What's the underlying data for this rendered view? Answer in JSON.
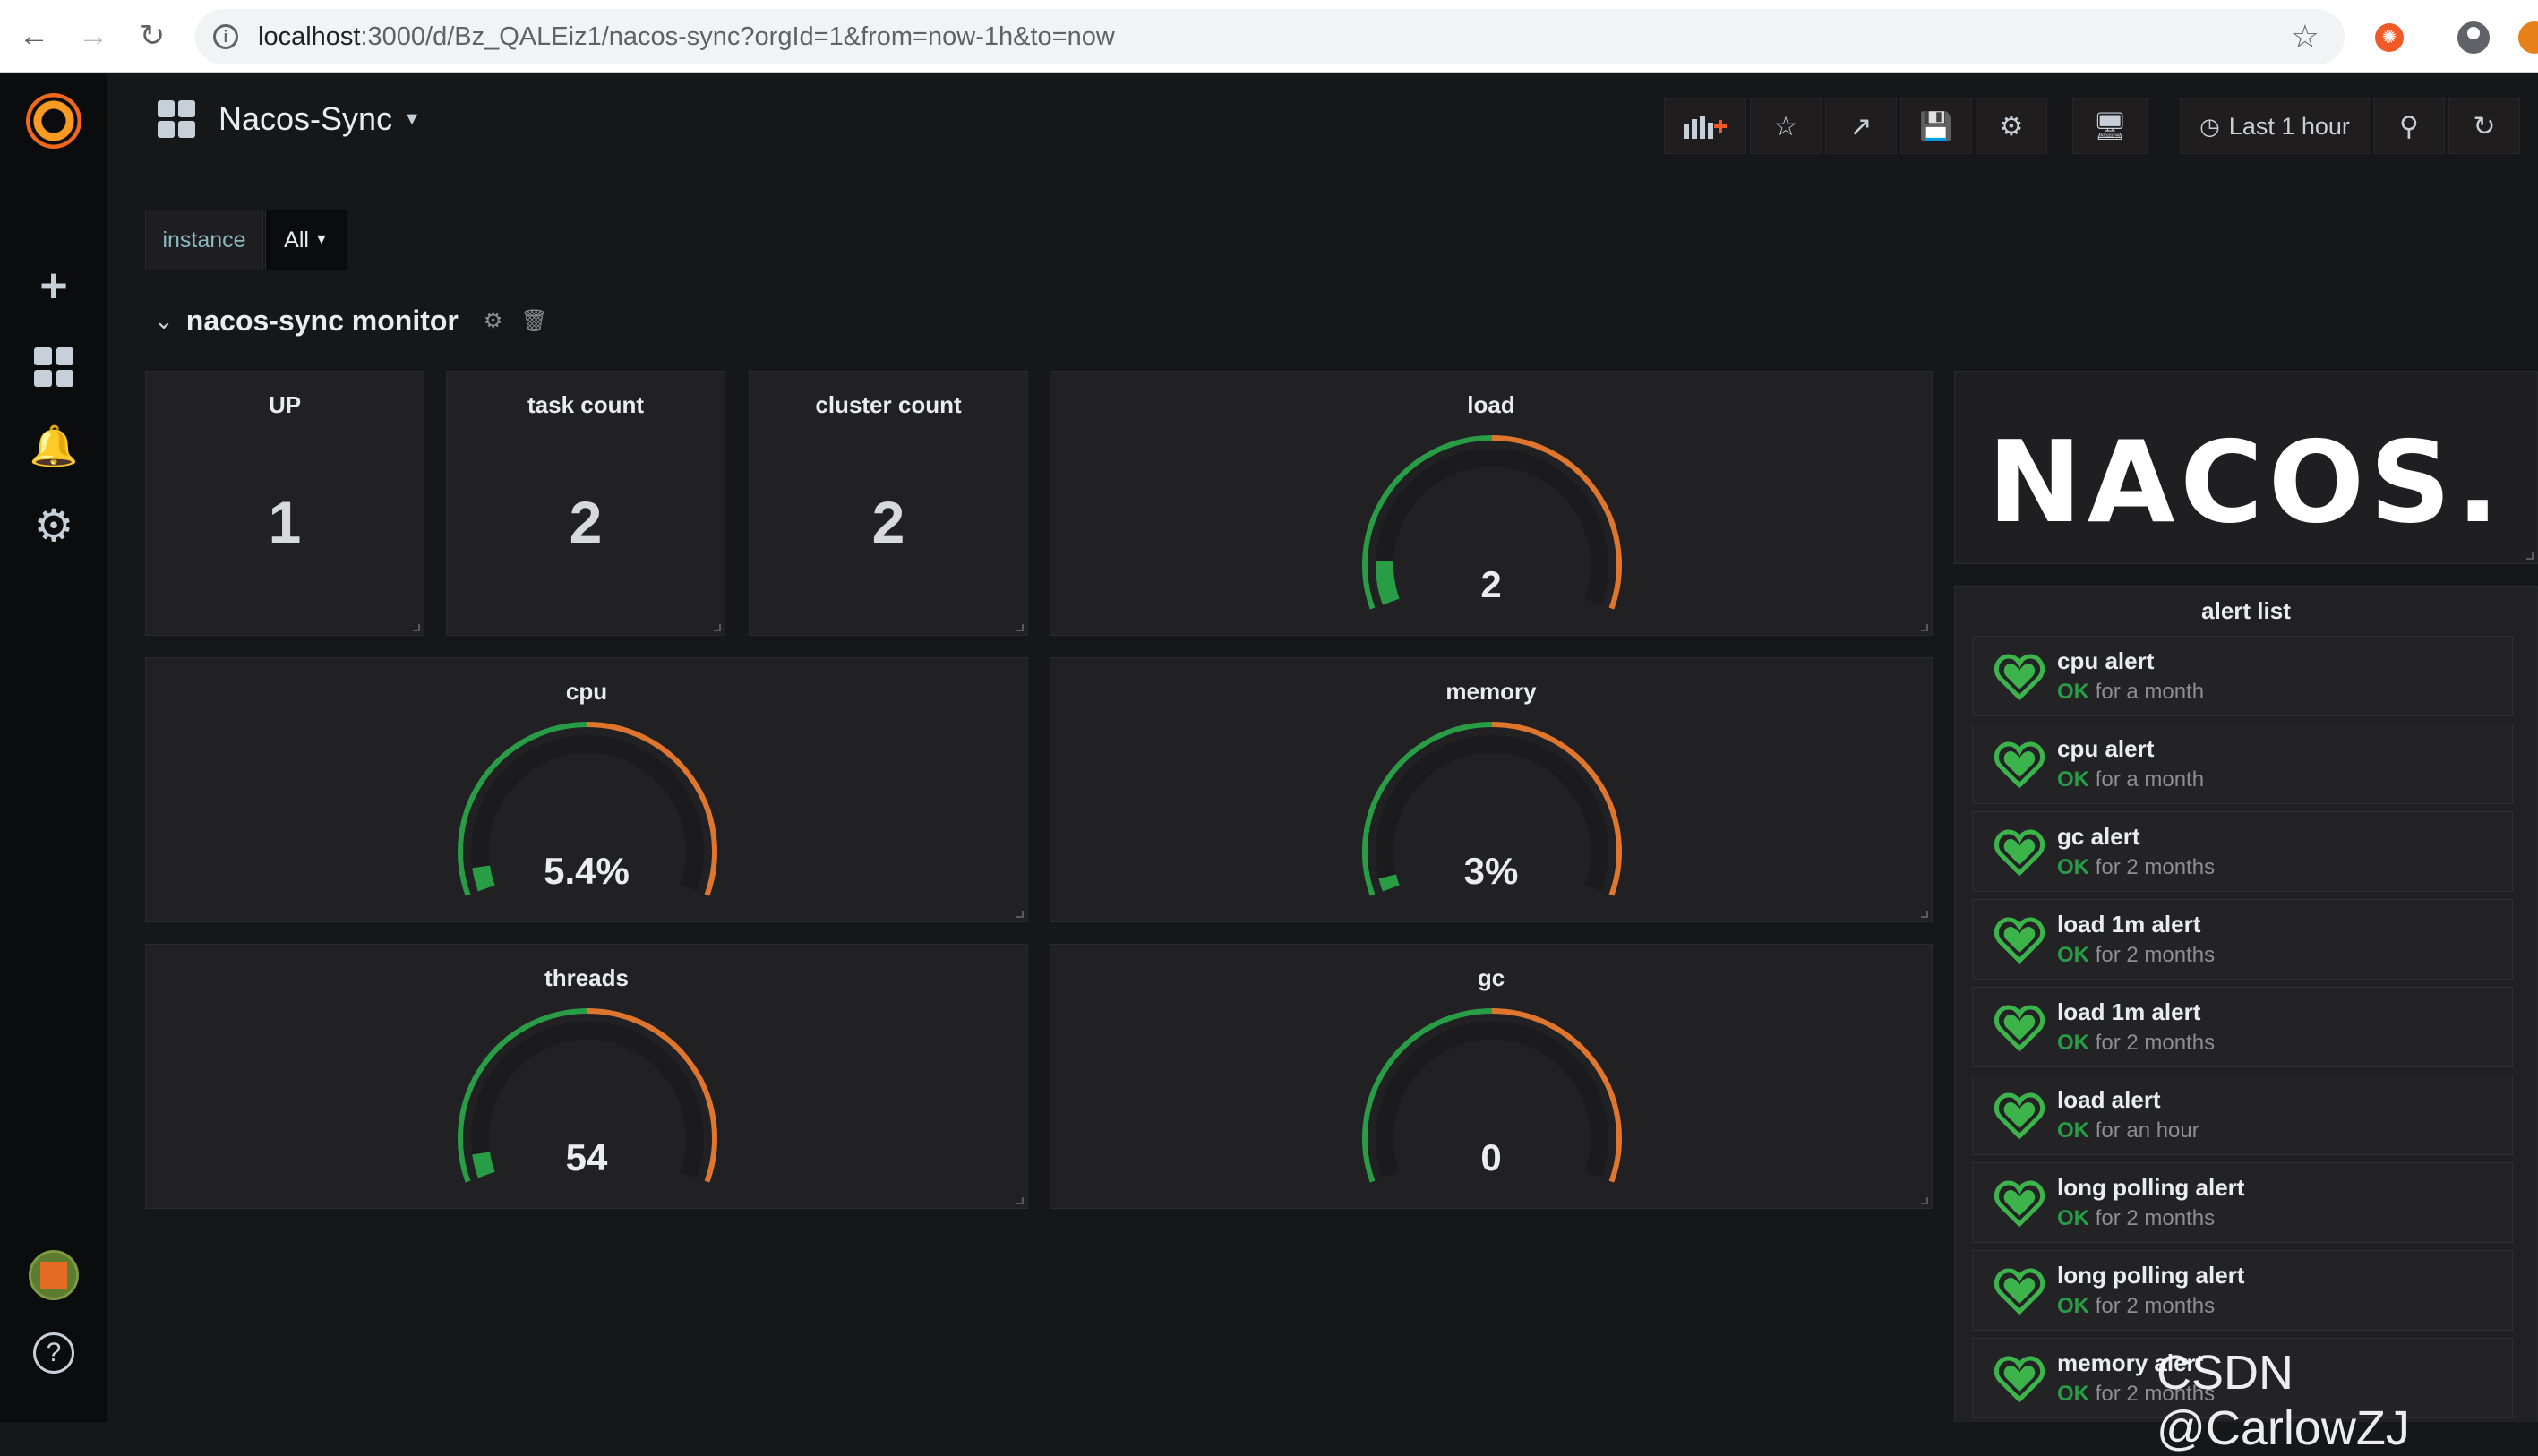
{
  "browser": {
    "url_host": "localhost",
    "url_rest": ":3000/d/Bz_QALEiz1/nacos-sync?orgId=1&from=now-1h&to=now"
  },
  "dashboard": {
    "title": "Nacos-Sync",
    "time_range": "Last 1 hour"
  },
  "variables": {
    "label": "instance",
    "value": "All"
  },
  "row": {
    "title": "nacos-sync monitor"
  },
  "stats": [
    {
      "title": "UP",
      "value": "1"
    },
    {
      "title": "task count",
      "value": "2"
    },
    {
      "title": "cluster count",
      "value": "2"
    }
  ],
  "gauges": {
    "load": {
      "title": "load",
      "value": "2",
      "fill": 0.1
    },
    "cpu": {
      "title": "cpu",
      "value": "5.4%",
      "fill": 0.054
    },
    "memory": {
      "title": "memory",
      "value": "3%",
      "fill": 0.03
    },
    "threads": {
      "title": "threads",
      "value": "54",
      "fill": 0.054
    },
    "gc": {
      "title": "gc",
      "value": "0",
      "fill": 0.0
    }
  },
  "logo_panel": {
    "text": "NACOS."
  },
  "alert_list": {
    "title": "alert list",
    "ok_label": "OK",
    "items": [
      {
        "name": "cpu alert",
        "duration": "for a month"
      },
      {
        "name": "cpu alert",
        "duration": "for a month"
      },
      {
        "name": "gc alert",
        "duration": "for 2 months"
      },
      {
        "name": "load 1m alert",
        "duration": "for 2 months"
      },
      {
        "name": "load 1m alert",
        "duration": "for 2 months"
      },
      {
        "name": "load alert",
        "duration": "for an hour"
      },
      {
        "name": "long polling alert",
        "duration": "for 2 months"
      },
      {
        "name": "long polling alert",
        "duration": "for 2 months"
      },
      {
        "name": "memory alert",
        "duration": "for 2 months"
      }
    ]
  },
  "watermark": "CSDN @CarlowZJ",
  "colors": {
    "gauge_green": "#299c46",
    "gauge_orange": "#e0752d",
    "ok_green": "#299c46",
    "heart_green": "#3cb44b",
    "background": "#161719",
    "panel": "#212124"
  }
}
